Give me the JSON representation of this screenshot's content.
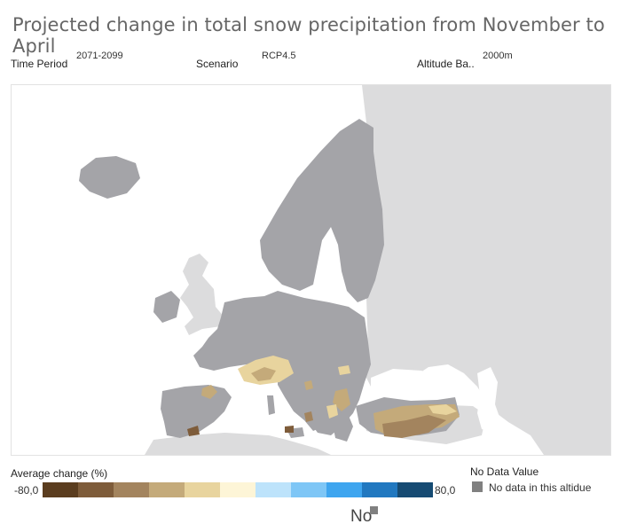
{
  "title": "Projected change in total snow precipitation from November to April",
  "filters": {
    "time_period": {
      "label": "Time Period",
      "value": "2071-2099"
    },
    "scenario": {
      "label": "Scenario",
      "value": "RCP4.5"
    },
    "altitude": {
      "label": "Altitude Ba..",
      "value": "2000m"
    }
  },
  "legend": {
    "title": "Average change (%)",
    "min": "-80,0",
    "max": "80,0",
    "colors": [
      "#5b3d1f",
      "#7e5c3a",
      "#a3845e",
      "#c4aa7a",
      "#e8d49e",
      "#fdf5d7",
      "#bde3fb",
      "#7ec6f6",
      "#3ea5ef",
      "#2178c0",
      "#164b73"
    ]
  },
  "no_data": {
    "title": "No Data Value",
    "label": "No data in this altidue",
    "color": "#808080"
  },
  "bottom": {
    "text": "No"
  },
  "map_colors": {
    "land_outside": "#dcdcdd",
    "no_data_land": "#a4a4a8",
    "sea": "#ffffff"
  }
}
